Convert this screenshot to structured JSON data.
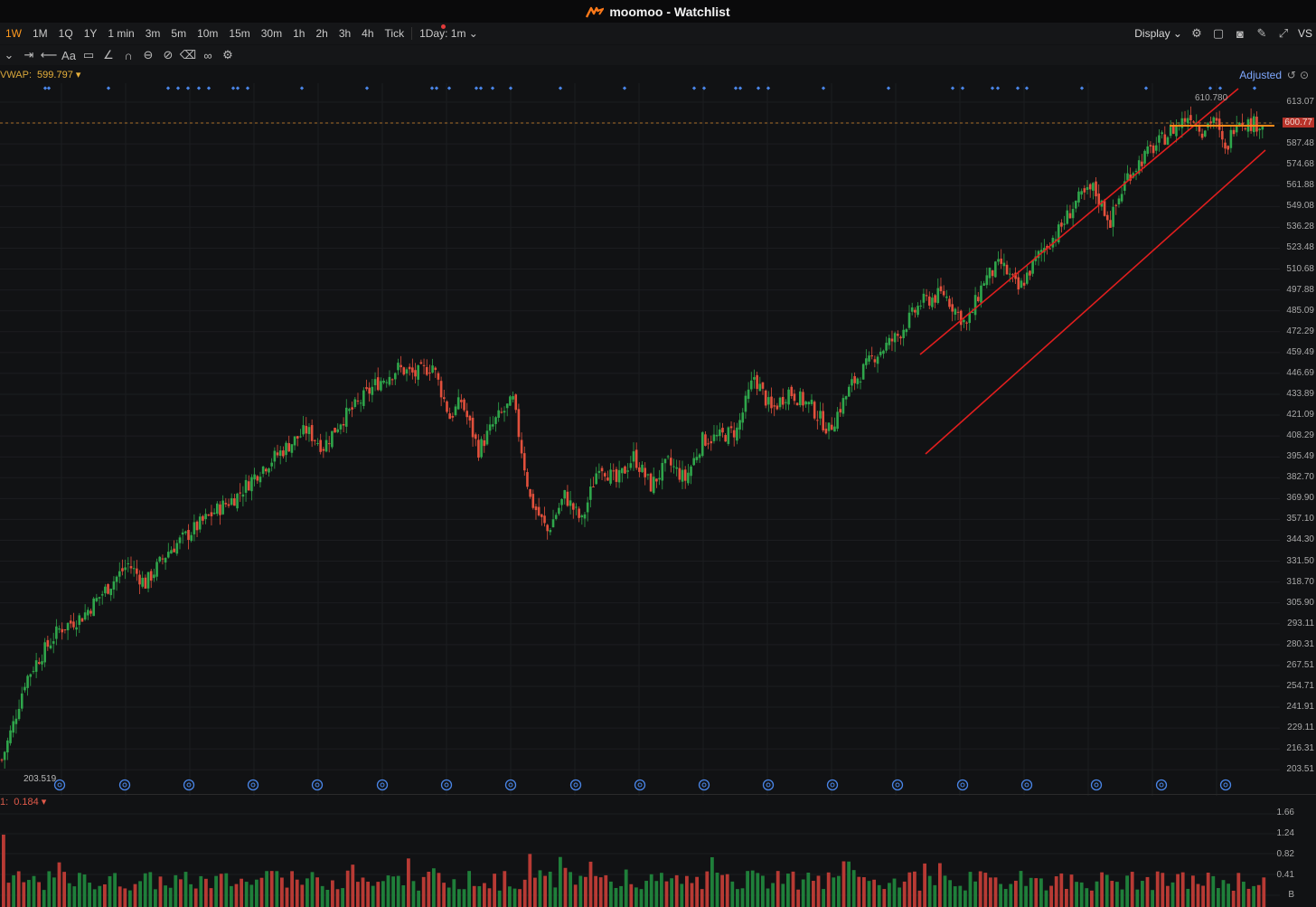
{
  "window": {
    "title": "moomoo - Watchlist"
  },
  "timeframes": [
    "1W",
    "1M",
    "1Q",
    "1Y",
    "1 min",
    "3m",
    "5m",
    "10m",
    "15m",
    "30m",
    "1h",
    "2h",
    "3h",
    "4h",
    "Tick"
  ],
  "active_timeframe": "1W",
  "session_select": "1Day: 1m",
  "display_label": "Display",
  "vs_label": "VS",
  "indicator": {
    "name": "VWAP:",
    "value": "599.797"
  },
  "adjusted_label": "Adjusted",
  "price_axis": [
    "613.07",
    "600.77",
    "587.48",
    "574.68",
    "561.88",
    "549.08",
    "536.28",
    "523.48",
    "510.68",
    "497.88",
    "485.09",
    "472.29",
    "459.49",
    "446.69",
    "433.89",
    "421.09",
    "408.29",
    "395.49",
    "382.70",
    "369.90",
    "357.10",
    "344.30",
    "331.50",
    "318.70",
    "305.90",
    "293.11",
    "280.31",
    "267.51",
    "254.71",
    "241.91",
    "229.11",
    "216.31",
    "203.51"
  ],
  "current_price_label": "600.77",
  "chart_high_label": "610.780",
  "chart_low_label": "203.519",
  "volume": {
    "label": "1:",
    "value": "0.184",
    "axis": [
      "1.66",
      "1.24",
      "0.82",
      "0.41",
      "B"
    ]
  },
  "colors": {
    "up": "#2fa64b",
    "down": "#e2503c",
    "accent": "#ff9a1f",
    "trendline": "#e01e1e",
    "marker": "#4a86e8"
  },
  "chart_data": {
    "type": "candlestick",
    "y_range": [
      203.519,
      613.07
    ],
    "key_prices": {
      "high": 610.78,
      "low": 203.519,
      "current": 600.77,
      "vwap": 599.797
    },
    "close_path": [
      [
        0,
        210
      ],
      [
        4,
        232
      ],
      [
        8,
        258
      ],
      [
        12,
        270
      ],
      [
        20,
        290
      ],
      [
        28,
        298
      ],
      [
        36,
        314
      ],
      [
        44,
        330
      ],
      [
        50,
        318
      ],
      [
        58,
        338
      ],
      [
        66,
        350
      ],
      [
        74,
        362
      ],
      [
        82,
        372
      ],
      [
        90,
        388
      ],
      [
        98,
        400
      ],
      [
        106,
        412
      ],
      [
        112,
        402
      ],
      [
        118,
        418
      ],
      [
        124,
        428
      ],
      [
        130,
        440
      ],
      [
        138,
        450
      ],
      [
        144,
        446
      ],
      [
        150,
        452
      ],
      [
        156,
        420
      ],
      [
        160,
        430
      ],
      [
        166,
        400
      ],
      [
        172,
        418
      ],
      [
        178,
        430
      ],
      [
        184,
        370
      ],
      [
        190,
        350
      ],
      [
        196,
        372
      ],
      [
        202,
        356
      ],
      [
        208,
        392
      ],
      [
        214,
        380
      ],
      [
        220,
        396
      ],
      [
        226,
        378
      ],
      [
        232,
        392
      ],
      [
        238,
        382
      ],
      [
        244,
        406
      ],
      [
        250,
        408
      ],
      [
        256,
        412
      ],
      [
        262,
        445
      ],
      [
        268,
        424
      ],
      [
        274,
        436
      ],
      [
        282,
        426
      ],
      [
        288,
        412
      ],
      [
        296,
        440
      ],
      [
        304,
        458
      ],
      [
        312,
        470
      ],
      [
        320,
        490
      ],
      [
        328,
        496
      ],
      [
        336,
        476
      ],
      [
        342,
        504
      ],
      [
        348,
        514
      ],
      [
        354,
        498
      ],
      [
        362,
        522
      ],
      [
        368,
        534
      ],
      [
        374,
        552
      ],
      [
        380,
        560
      ],
      [
        386,
        540
      ],
      [
        392,
        568
      ],
      [
        398,
        580
      ],
      [
        404,
        590
      ],
      [
        410,
        600
      ],
      [
        414,
        606
      ],
      [
        418,
        596
      ],
      [
        422,
        604
      ],
      [
        426,
        582
      ],
      [
        430,
        604
      ],
      [
        434,
        600
      ]
    ]
  }
}
